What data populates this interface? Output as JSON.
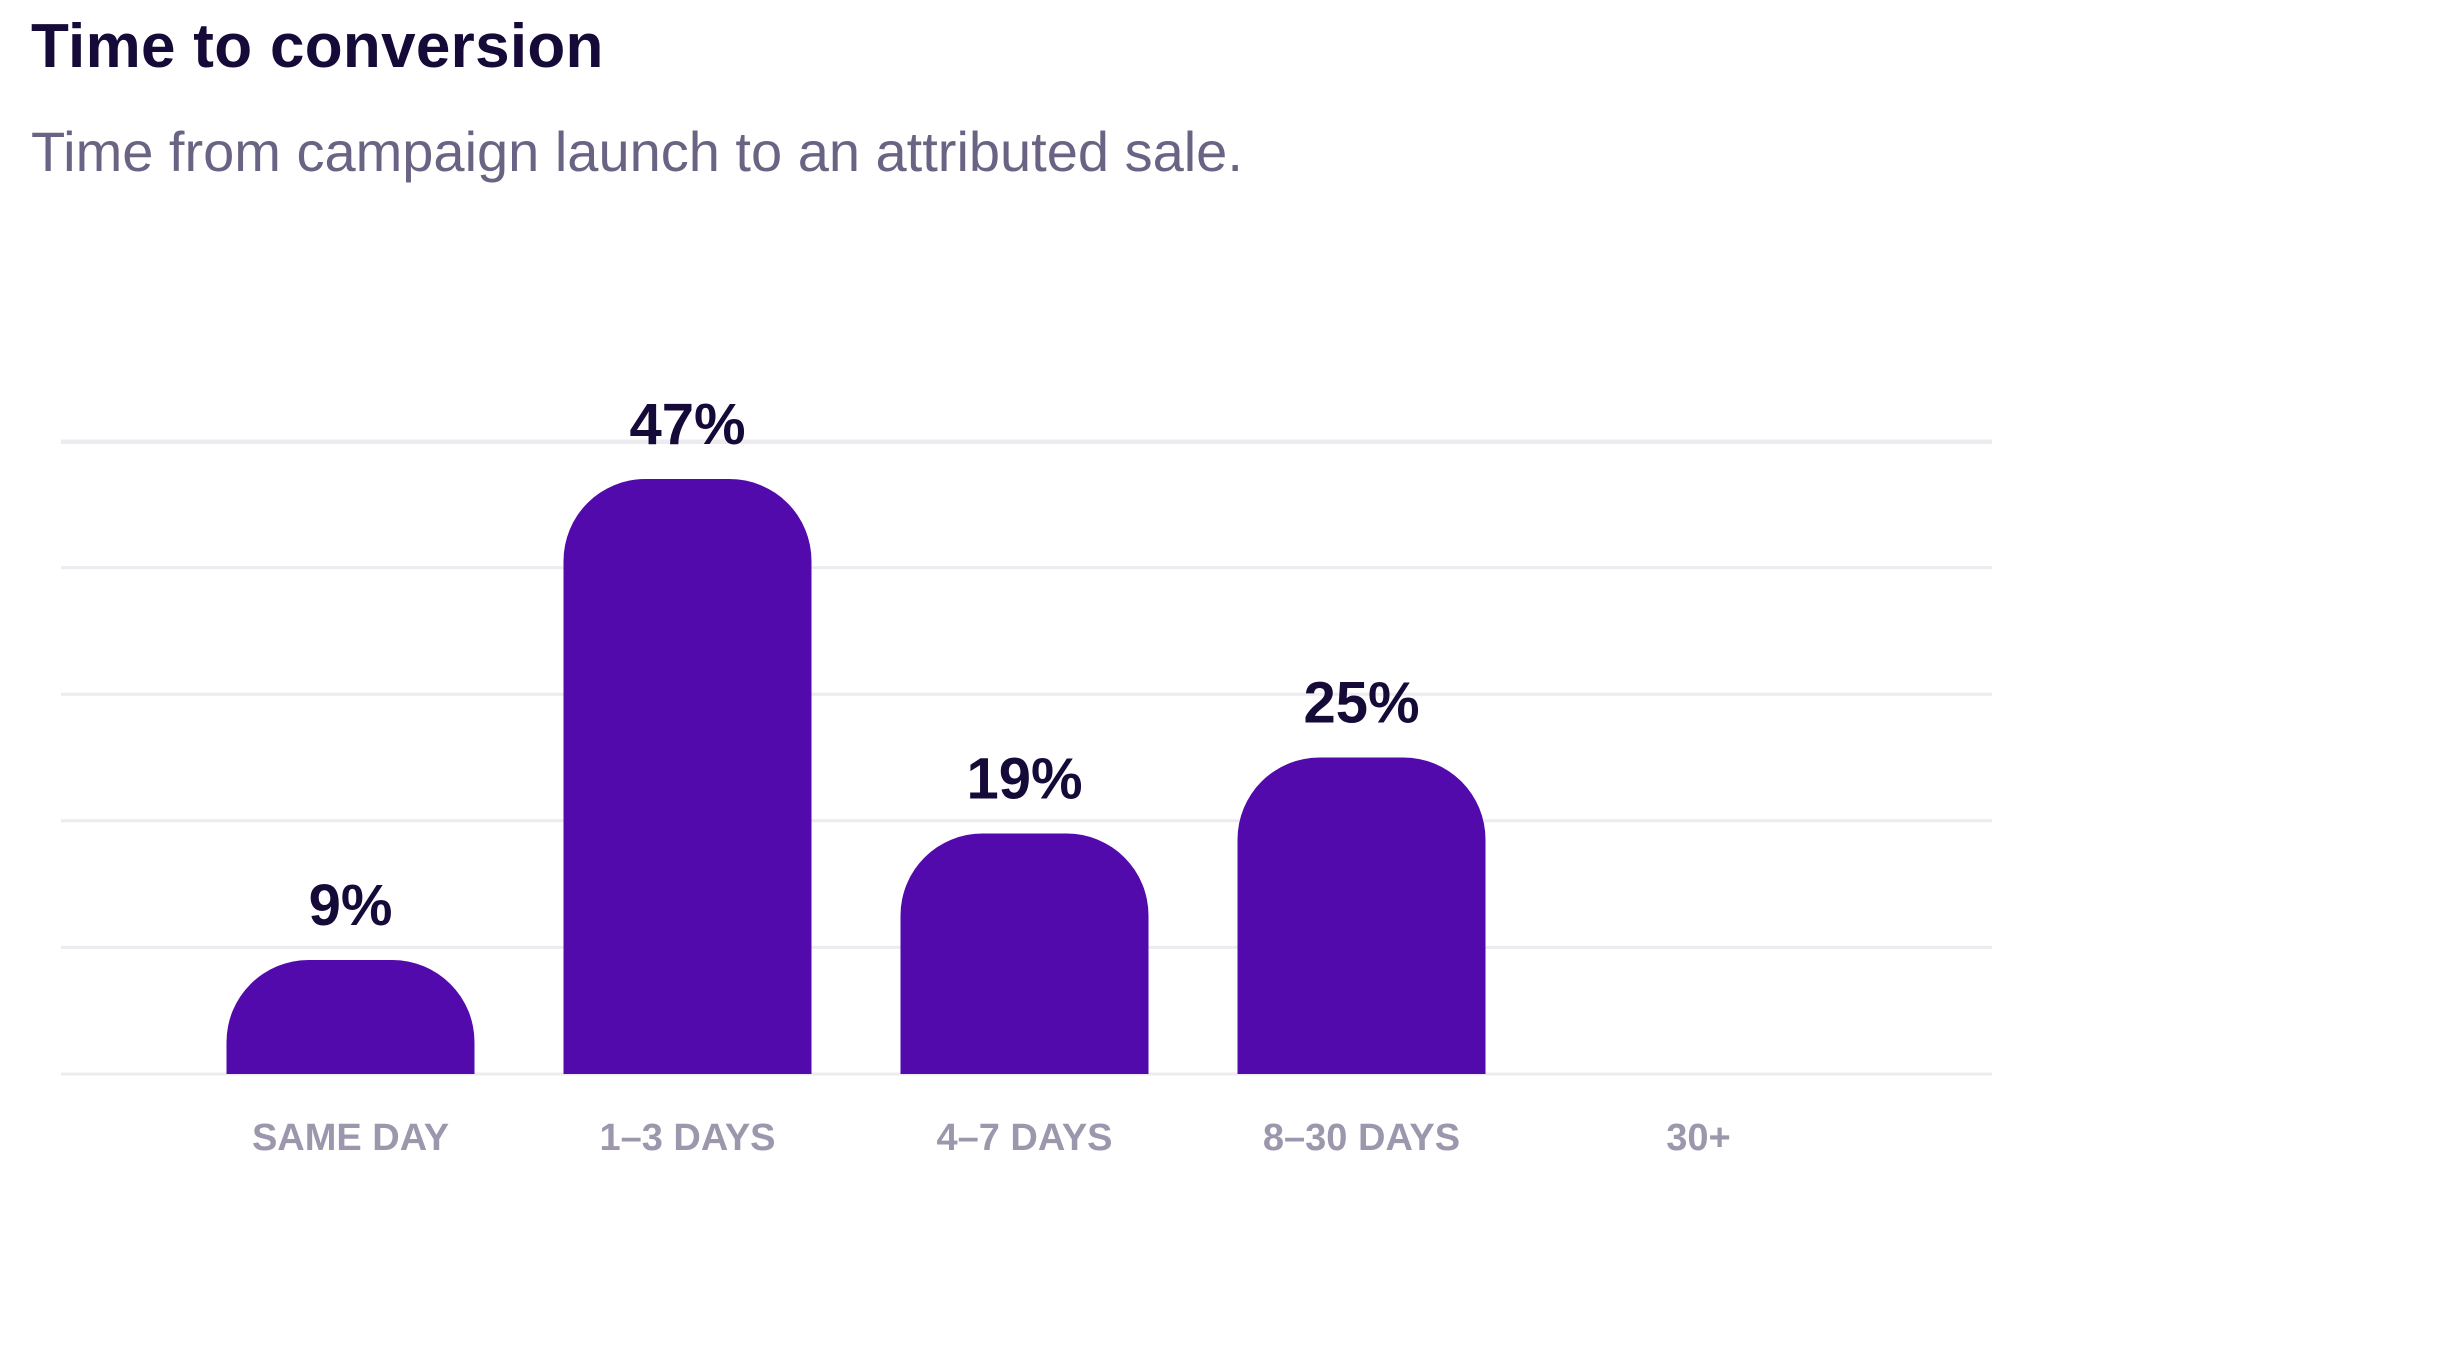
{
  "chart_data": {
    "type": "bar",
    "title": "Time to conversion",
    "subtitle": "Time from campaign launch to an attributed sale.",
    "categories": [
      "SAME DAY",
      "1–3 DAYS",
      "4–7 DAYS",
      "8–30 DAYS",
      "30+"
    ],
    "values": [
      9,
      47,
      19,
      25,
      null
    ],
    "data_labels": [
      "9%",
      "47%",
      "19%",
      "25%",
      ""
    ],
    "xlabel": "",
    "ylabel": "",
    "ylim": [
      0,
      50
    ],
    "grid": true,
    "legend": "none",
    "colors": {
      "bar": "#520aad",
      "data_label": "#150a38",
      "tick_label": "#9c97ad",
      "grid": "#ececf0",
      "title": "#150a38",
      "subtitle": "#6b6384"
    }
  }
}
